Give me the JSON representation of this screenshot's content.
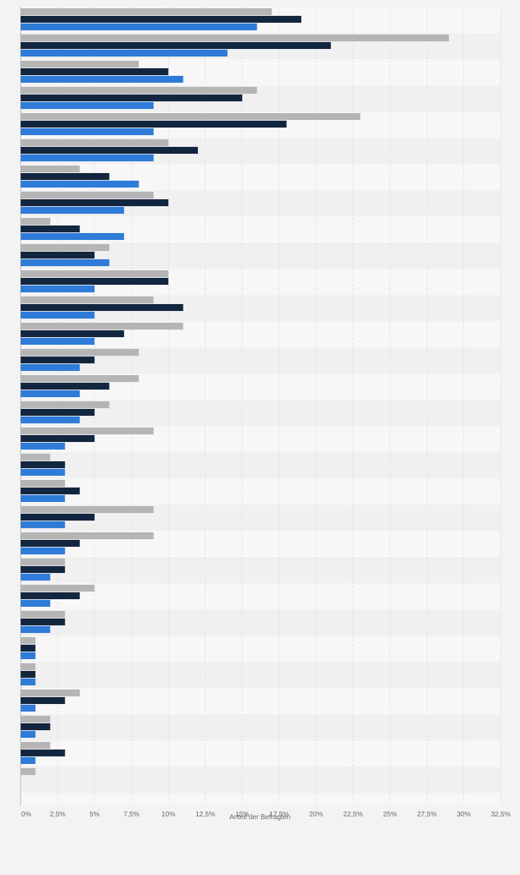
{
  "chart_data": {
    "type": "bar",
    "orientation": "horizontal",
    "xlabel": "Anteil der Befragten",
    "xlim": [
      0,
      32.5
    ],
    "x_ticks": [
      "0%",
      "2,5%",
      "5%",
      "7,5%",
      "10%",
      "12,5%",
      "15%",
      "17,5%",
      "20%",
      "22,5%",
      "25%",
      "27,5%",
      "30%",
      "32,5%"
    ],
    "grid": true,
    "series": [
      {
        "color": "#b5b5b5",
        "values": [
          17,
          29,
          8,
          16,
          23,
          10,
          4,
          9,
          2,
          6,
          10,
          9,
          11,
          8,
          8,
          6,
          9,
          2,
          3,
          9,
          9,
          3,
          5,
          3,
          1,
          1,
          4,
          2,
          2,
          1
        ]
      },
      {
        "color": "#13263f",
        "values": [
          19,
          21,
          10,
          15,
          18,
          12,
          6,
          10,
          4,
          5,
          10,
          11,
          7,
          5,
          6,
          5,
          5,
          3,
          4,
          5,
          4,
          3,
          4,
          3,
          1,
          1,
          3,
          2,
          3,
          null
        ]
      },
      {
        "color": "#2f7bd8",
        "values": [
          16,
          14,
          11,
          9,
          9,
          9,
          8,
          7,
          7,
          6,
          5,
          5,
          5,
          4,
          4,
          4,
          3,
          3,
          3,
          3,
          3,
          2,
          2,
          2,
          1,
          1,
          1,
          1,
          1,
          null
        ]
      }
    ]
  }
}
